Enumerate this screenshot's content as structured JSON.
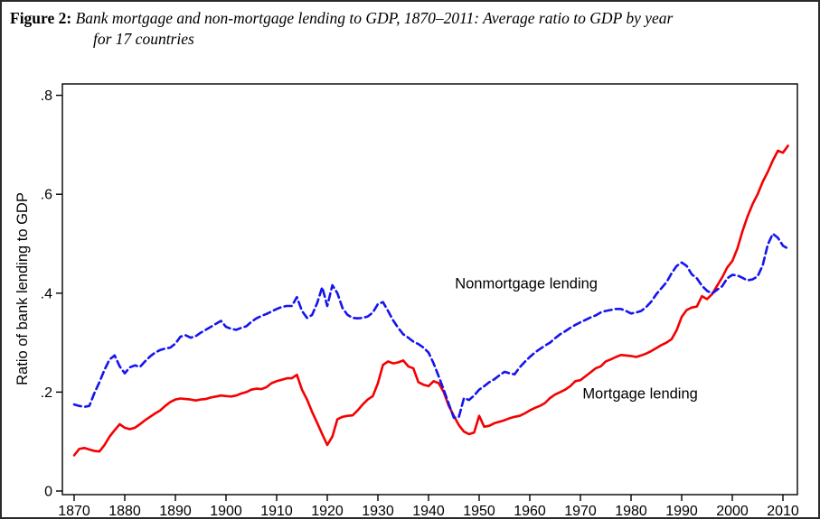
{
  "figure": {
    "label": "Figure 2:",
    "title_line1": "Bank mortgage and non-mortgage lending to GDP, 1870–2011: Average ratio to GDP by year",
    "title_line2": "for 17 countries"
  },
  "chart_data": {
    "type": "line",
    "title": "Bank mortgage and non-mortgage lending to GDP, 1870-2011: Average ratio to GDP by year for 17 countries",
    "xlabel": "",
    "ylabel": "Ratio of bank lending to GDP",
    "xlim": [
      1870,
      2011
    ],
    "ylim": [
      0,
      0.8
    ],
    "grid": false,
    "legend_position": "inline-labels",
    "x_ticks": [
      1870,
      1880,
      1890,
      1900,
      1910,
      1920,
      1930,
      1940,
      1950,
      1960,
      1970,
      1980,
      1990,
      2000,
      2010
    ],
    "y_tick_values": [
      0,
      0.2,
      0.4,
      0.6,
      0.8
    ],
    "y_tick_labels": [
      "0",
      ".2",
      ".4",
      ".6",
      ".8"
    ],
    "x_start": 1870,
    "x_step": 1,
    "series": [
      {
        "name": "Mortgage lending",
        "color": "#f40000",
        "style": "solid",
        "values": [
          0.072,
          0.085,
          0.087,
          0.084,
          0.081,
          0.08,
          0.093,
          0.11,
          0.123,
          0.135,
          0.128,
          0.125,
          0.128,
          0.135,
          0.143,
          0.15,
          0.157,
          0.163,
          0.172,
          0.18,
          0.185,
          0.187,
          0.186,
          0.185,
          0.183,
          0.185,
          0.186,
          0.189,
          0.191,
          0.193,
          0.192,
          0.191,
          0.193,
          0.197,
          0.2,
          0.205,
          0.207,
          0.206,
          0.21,
          0.218,
          0.222,
          0.225,
          0.228,
          0.228,
          0.235,
          0.205,
          0.185,
          0.16,
          0.138,
          0.115,
          0.093,
          0.11,
          0.145,
          0.15,
          0.152,
          0.153,
          0.163,
          0.175,
          0.185,
          0.192,
          0.218,
          0.255,
          0.262,
          0.258,
          0.26,
          0.264,
          0.252,
          0.248,
          0.22,
          0.215,
          0.212,
          0.222,
          0.218,
          0.2,
          0.172,
          0.152,
          0.133,
          0.12,
          0.115,
          0.118,
          0.152,
          0.13,
          0.132,
          0.137,
          0.14,
          0.143,
          0.147,
          0.15,
          0.152,
          0.157,
          0.163,
          0.168,
          0.172,
          0.178,
          0.188,
          0.195,
          0.2,
          0.205,
          0.212,
          0.222,
          0.224,
          0.232,
          0.24,
          0.248,
          0.252,
          0.262,
          0.266,
          0.271,
          0.275,
          0.274,
          0.273,
          0.271,
          0.274,
          0.278,
          0.283,
          0.289,
          0.295,
          0.3,
          0.307,
          0.325,
          0.352,
          0.366,
          0.371,
          0.373,
          0.394,
          0.388,
          0.398,
          0.415,
          0.432,
          0.452,
          0.465,
          0.49,
          0.525,
          0.555,
          0.58,
          0.6,
          0.625,
          0.645,
          0.668,
          0.688,
          0.684,
          0.698
        ]
      },
      {
        "name": "Nonmortgage lending",
        "color": "#1414f0",
        "style": "dashed",
        "values": [
          0.175,
          0.172,
          0.17,
          0.172,
          0.198,
          0.22,
          0.245,
          0.266,
          0.274,
          0.252,
          0.238,
          0.25,
          0.254,
          0.251,
          0.262,
          0.272,
          0.28,
          0.285,
          0.288,
          0.29,
          0.298,
          0.312,
          0.315,
          0.31,
          0.313,
          0.32,
          0.326,
          0.332,
          0.338,
          0.344,
          0.332,
          0.328,
          0.326,
          0.33,
          0.333,
          0.342,
          0.349,
          0.354,
          0.358,
          0.363,
          0.368,
          0.372,
          0.374,
          0.374,
          0.392,
          0.364,
          0.35,
          0.356,
          0.38,
          0.412,
          0.374,
          0.416,
          0.4,
          0.37,
          0.356,
          0.35,
          0.349,
          0.35,
          0.353,
          0.361,
          0.378,
          0.382,
          0.364,
          0.345,
          0.33,
          0.317,
          0.31,
          0.302,
          0.297,
          0.29,
          0.28,
          0.258,
          0.232,
          0.205,
          0.176,
          0.148,
          0.15,
          0.188,
          0.184,
          0.193,
          0.205,
          0.212,
          0.22,
          0.226,
          0.234,
          0.241,
          0.238,
          0.236,
          0.25,
          0.261,
          0.271,
          0.28,
          0.287,
          0.294,
          0.3,
          0.309,
          0.317,
          0.323,
          0.33,
          0.336,
          0.341,
          0.346,
          0.351,
          0.355,
          0.361,
          0.364,
          0.366,
          0.368,
          0.368,
          0.364,
          0.359,
          0.361,
          0.364,
          0.372,
          0.383,
          0.398,
          0.41,
          0.422,
          0.44,
          0.455,
          0.462,
          0.455,
          0.438,
          0.43,
          0.415,
          0.405,
          0.399,
          0.407,
          0.414,
          0.43,
          0.437,
          0.436,
          0.431,
          0.426,
          0.428,
          0.434,
          0.456,
          0.498,
          0.52,
          0.512,
          0.496,
          0.49
        ]
      }
    ],
    "annotations": [
      {
        "text": "Nonmortgage lending",
        "x": 1959.3,
        "y": 0.42
      },
      {
        "text": "Mortgage lending",
        "x": 1981.8,
        "y": 0.197
      }
    ]
  }
}
